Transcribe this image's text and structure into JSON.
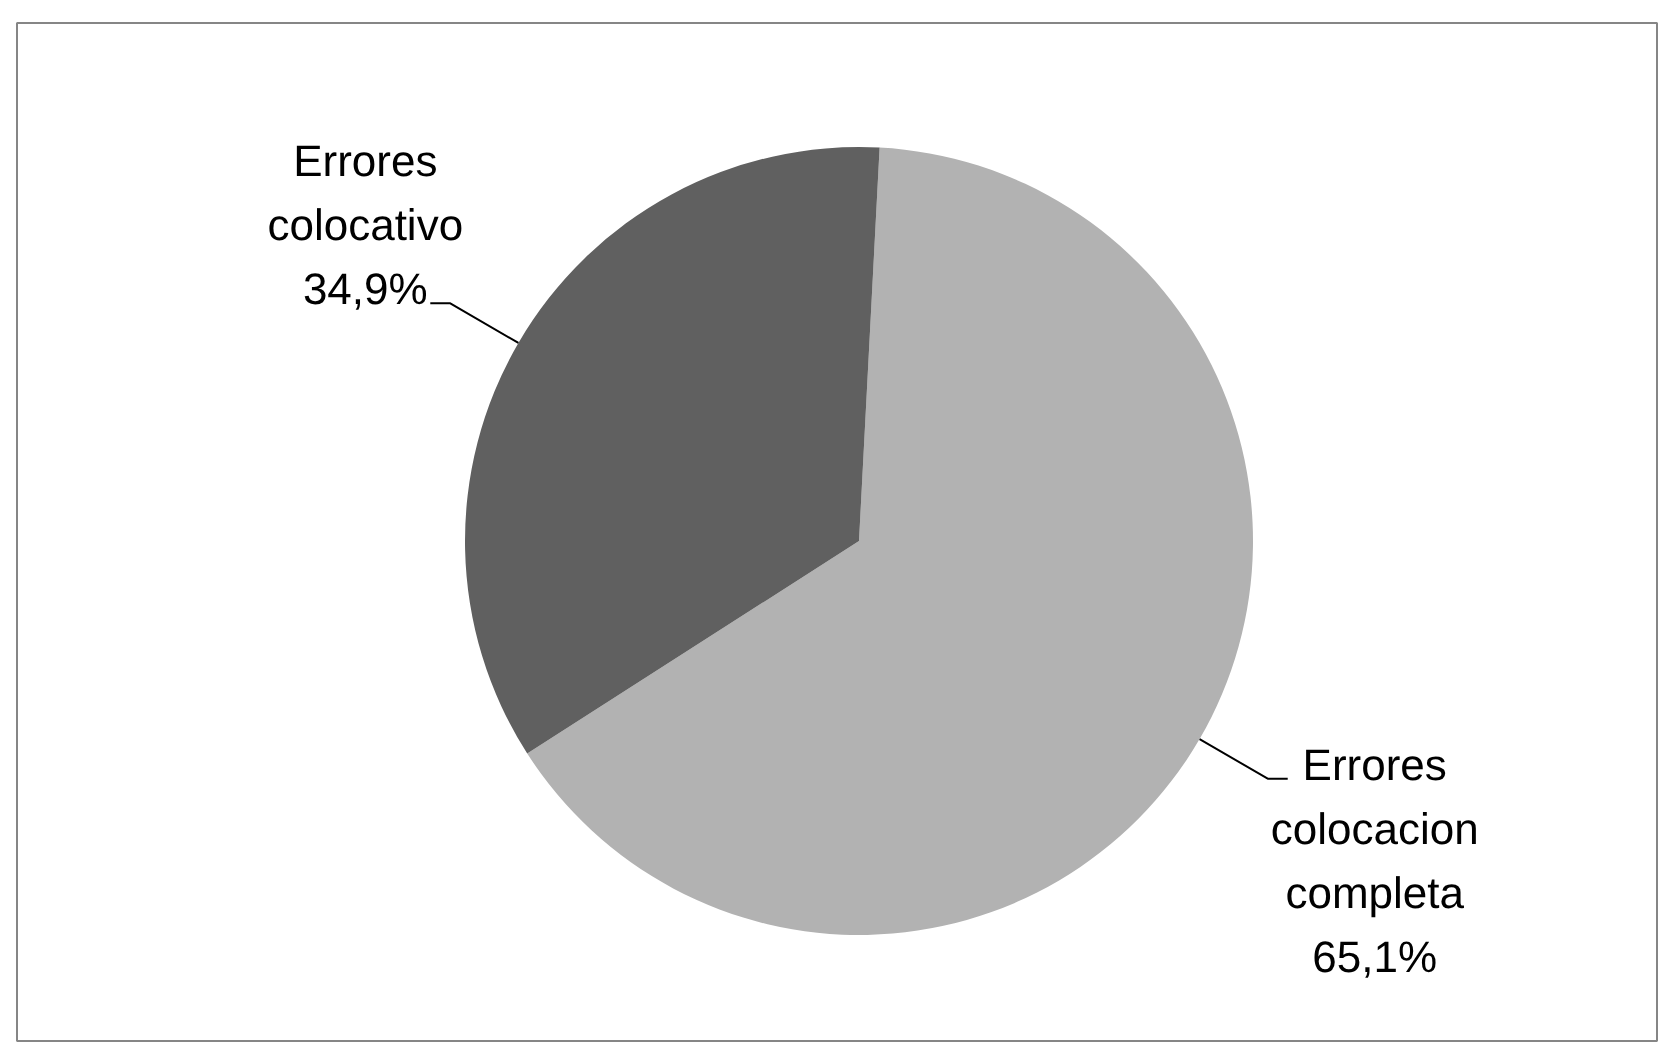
{
  "chart_data": {
    "type": "pie",
    "categories": [
      "Errores colocacion completa",
      "Errores colocativo"
    ],
    "values": [
      65.1,
      34.9
    ],
    "colors": [
      "#b2b2b2",
      "#606060"
    ],
    "value_labels": [
      "65,1%",
      "34,9%"
    ]
  }
}
